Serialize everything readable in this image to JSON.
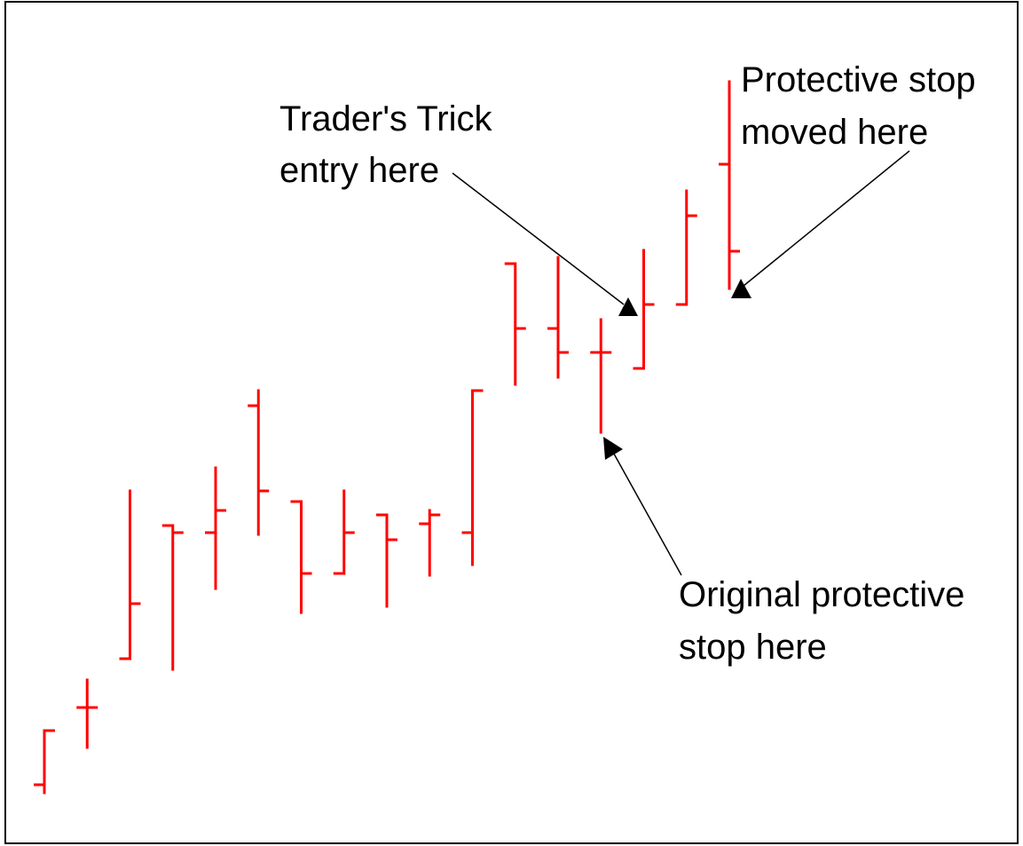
{
  "chart_data": {
    "type": "ohlc",
    "color": "#ff0000",
    "ylim": [
      0,
      100
    ],
    "open": [
      11.6,
      20.3,
      25.8,
      40.8,
      40.0,
      54.3,
      43.5,
      35.4,
      42.0,
      41.0,
      40.0,
      70.3,
      63.0,
      60.3,
      58.5,
      65.7,
      81.5
    ],
    "high": [
      17.7,
      23.4,
      44.7,
      40.8,
      47.3,
      56.0,
      43.5,
      44.7,
      42.0,
      42.5,
      56.0,
      70.3,
      71.0,
      64.0,
      71.8,
      78.5,
      90.8
    ],
    "low": [
      10.7,
      15.8,
      25.8,
      24.6,
      33.7,
      39.8,
      31.0,
      35.4,
      31.7,
      35.2,
      36.4,
      56.7,
      57.5,
      51.3,
      58.5,
      65.7,
      67.5
    ],
    "close": [
      17.7,
      20.3,
      32.0,
      40.0,
      42.5,
      44.7,
      35.4,
      40.0,
      39.2,
      42.0,
      56.0,
      63.0,
      60.3,
      60.3,
      65.7,
      75.7,
      71.7
    ],
    "annotations": [
      {
        "lines": [
          "Trader's Trick",
          "entry here"
        ]
      },
      {
        "lines": [
          "Protective stop",
          "moved here"
        ]
      },
      {
        "lines": [
          "Original protective",
          "stop here"
        ]
      }
    ]
  }
}
